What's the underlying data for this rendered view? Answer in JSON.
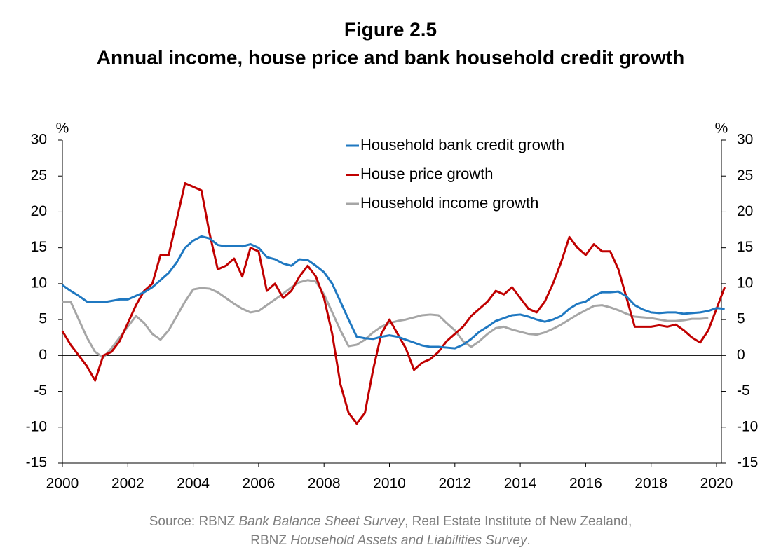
{
  "chart_data": {
    "type": "line",
    "title": "Figure 2.5",
    "subtitle": "Annual income, house price and bank household credit growth",
    "y_label": "%",
    "y2_label": "%",
    "x": [
      2000,
      2000.25,
      2000.5,
      2000.75,
      2001,
      2001.25,
      2001.5,
      2001.75,
      2002,
      2002.25,
      2002.5,
      2002.75,
      2003,
      2003.25,
      2003.5,
      2003.75,
      2004,
      2004.25,
      2004.5,
      2004.75,
      2005,
      2005.25,
      2005.5,
      2005.75,
      2006,
      2006.25,
      2006.5,
      2006.75,
      2007,
      2007.25,
      2007.5,
      2007.75,
      2008,
      2008.25,
      2008.5,
      2008.75,
      2009,
      2009.25,
      2009.5,
      2009.75,
      2010,
      2010.25,
      2010.5,
      2010.75,
      2011,
      2011.25,
      2011.5,
      2011.75,
      2012,
      2012.25,
      2012.5,
      2012.75,
      2013,
      2013.25,
      2013.5,
      2013.75,
      2014,
      2014.25,
      2014.5,
      2014.75,
      2015,
      2015.25,
      2015.5,
      2015.75,
      2016,
      2016.25,
      2016.5,
      2016.75,
      2017,
      2017.25,
      2017.5,
      2017.75,
      2018,
      2018.25,
      2018.5,
      2018.75,
      2019,
      2019.25,
      2019.5,
      2019.75,
      2020,
      2020.25
    ],
    "series": [
      {
        "name": "Household bank credit growth",
        "color": "#1f78c1",
        "values": [
          9.8,
          9,
          8.3,
          7.5,
          7.4,
          7.4,
          7.6,
          7.8,
          7.8,
          8.3,
          8.8,
          9.5,
          10.5,
          11.5,
          13,
          15,
          16,
          16.6,
          16.3,
          15.4,
          15.2,
          15.3,
          15.2,
          15.5,
          15,
          13.7,
          13.4,
          12.8,
          12.5,
          13.4,
          13.3,
          12.5,
          11.6,
          10,
          7.5,
          5,
          2.6,
          2.4,
          2.3,
          2.6,
          2.8,
          2.6,
          2.2,
          1.8,
          1.4,
          1.2,
          1.2,
          1.1,
          1,
          1.5,
          2.3,
          3.3,
          4,
          4.8,
          5.2,
          5.6,
          5.7,
          5.4,
          5,
          4.7,
          5,
          5.5,
          6.5,
          7.2,
          7.5,
          8.3,
          8.8,
          8.8,
          8.9,
          8.2,
          7,
          6.4,
          6,
          5.9,
          6,
          6,
          5.8,
          5.9,
          6,
          6.2,
          6.6,
          6.5
        ]
      },
      {
        "name": "House price growth",
        "color": "#c00000",
        "values": [
          3.4,
          1.5,
          0,
          -1.5,
          -3.5,
          0,
          0.5,
          2,
          4.5,
          7,
          9,
          10,
          14,
          14,
          19,
          24,
          23.5,
          23,
          17,
          12,
          12.5,
          13.5,
          11,
          15,
          14.5,
          9,
          10,
          8,
          9,
          11,
          12.5,
          11,
          8,
          3,
          -4,
          -8,
          -9.5,
          -8,
          -2,
          3,
          5,
          3,
          1,
          -2,
          -1,
          -0.5,
          0.5,
          2,
          3,
          4,
          5.5,
          6.5,
          7.5,
          9,
          8.5,
          9.5,
          8,
          6.5,
          6,
          7.5,
          10,
          13,
          16.5,
          15,
          14,
          15.5,
          14.5,
          14.5,
          12,
          8,
          4,
          4,
          4,
          4.2,
          4,
          4.3,
          3.5,
          2.5,
          1.8,
          3.5,
          6.5,
          9.5
        ]
      },
      {
        "name": "Household income growth",
        "color": "#a6a6a6",
        "values": [
          7.4,
          7.5,
          5,
          2.5,
          0.5,
          -0.3,
          1,
          2.5,
          4,
          5.5,
          4.5,
          3,
          2.2,
          3.5,
          5.5,
          7.5,
          9.2,
          9.4,
          9.3,
          8.8,
          8,
          7.2,
          6.5,
          6,
          6.2,
          7,
          7.8,
          8.6,
          9.5,
          10.2,
          10.5,
          10.3,
          8.5,
          6,
          3.5,
          1.3,
          1.5,
          2.2,
          3.2,
          4,
          4.5,
          4.8,
          5,
          5.3,
          5.6,
          5.7,
          5.6,
          4.5,
          3.5,
          2,
          1.2,
          2,
          3,
          3.8,
          4,
          3.6,
          3.3,
          3,
          2.9,
          3.2,
          3.7,
          4.3,
          5,
          5.7,
          6.3,
          6.9,
          7,
          6.7,
          6.3,
          5.8,
          5.4,
          5.3,
          5.2,
          5,
          4.8,
          4.8,
          4.9,
          5.1,
          5.1,
          5.2,
          null,
          null
        ]
      }
    ],
    "xlim": [
      2000,
      2020.15
    ],
    "xticks": [
      2000,
      2002,
      2004,
      2006,
      2008,
      2010,
      2012,
      2014,
      2016,
      2018,
      2020
    ],
    "ylim": [
      -15,
      30
    ],
    "yticks": [
      -15,
      -10,
      -5,
      0,
      5,
      10,
      15,
      20,
      25,
      30
    ],
    "y2lim": [
      -15,
      30
    ],
    "y2ticks": [
      -15,
      -10,
      -5,
      0,
      5,
      10,
      15,
      20,
      25,
      30
    ],
    "grid": false,
    "legend": "top",
    "source": [
      {
        "text": "Source: RBNZ ",
        "italic": false
      },
      {
        "text": "Bank Balance Sheet Survey",
        "italic": true
      },
      {
        "text": ", Real Estate Institute of New Zealand,",
        "italic": false
      },
      {
        "text": "RBNZ ",
        "italic": false,
        "newline": true
      },
      {
        "text": "Household Assets and Liabilities Survey",
        "italic": true
      },
      {
        "text": ".",
        "italic": false
      }
    ]
  }
}
